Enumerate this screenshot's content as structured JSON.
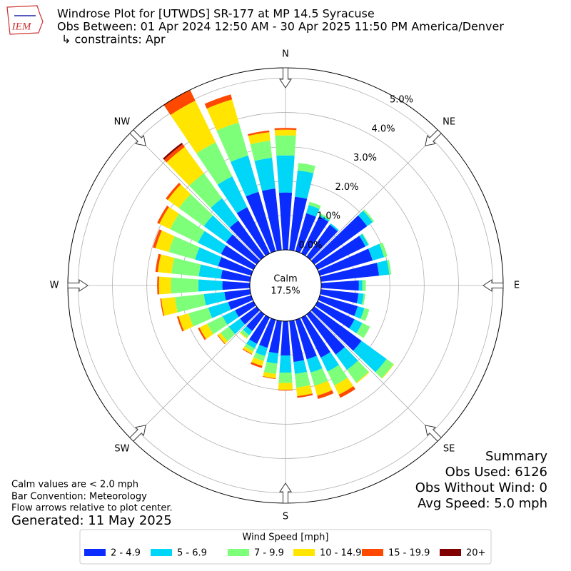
{
  "chart_data": {
    "type": "windrose",
    "title": "Windrose Plot for [UTWDS] SR-177 at MP 14.5 Syracuse",
    "subtitle": "Obs Between: 01 Apr 2024 12:50 AM - 30 Apr 2025 11:50 PM America/Denver",
    "constraints": "↳ constraints: Apr",
    "logo_text": "IEM",
    "directions": [
      "N",
      "NE",
      "E",
      "SE",
      "S",
      "SW",
      "W",
      "NW"
    ],
    "calm": {
      "name": "Calm",
      "values": [
        17.5
      ],
      "value_labels": [
        "17.5%"
      ]
    },
    "ylim": [
      0,
      5.3
    ],
    "yticks": [
      {
        "value": 0,
        "label": "0.0%"
      },
      {
        "value": 1,
        "label": "1.0%"
      },
      {
        "value": 2,
        "label": "2.0%"
      },
      {
        "value": 3,
        "label": "3.0%"
      },
      {
        "value": 4,
        "label": "4.0%"
      },
      {
        "value": 5,
        "label": "5.0%"
      }
    ],
    "x": [
      0,
      10,
      20,
      30,
      40,
      50,
      60,
      70,
      80,
      90,
      100,
      110,
      120,
      130,
      140,
      150,
      160,
      170,
      180,
      190,
      200,
      210,
      220,
      230,
      240,
      250,
      260,
      270,
      280,
      290,
      300,
      310,
      320,
      330,
      340,
      350
    ],
    "legend_title": "Wind Speed [mph]",
    "series": [
      {
        "name": "2 - 4.9",
        "color": "#0a2cff",
        "values": [
          1.67,
          1.56,
          1.15,
          1.2,
          1.15,
          1.9,
          1.55,
          1.6,
          1.7,
          1.1,
          1.1,
          1.15,
          1.2,
          1.7,
          1.45,
          1.3,
          1.2,
          1.2,
          1.0,
          0.95,
          0.85,
          0.85,
          0.6,
          0.6,
          0.6,
          0.7,
          0.75,
          0.8,
          0.85,
          1.0,
          1.05,
          1.1,
          1.3,
          1.5,
          1.8,
          1.8
        ]
      },
      {
        "name": "5 - 6.9",
        "color": "#00d6f7",
        "values": [
          1.08,
          0.77,
          0.25,
          0.05,
          0.05,
          0.2,
          0.1,
          0.35,
          0.3,
          0.1,
          0.15,
          0.2,
          0.25,
          0.9,
          0.55,
          0.45,
          0.4,
          0.35,
          0.5,
          0.3,
          0.25,
          0.15,
          0.15,
          0.4,
          0.4,
          0.6,
          0.6,
          0.7,
          0.65,
          0.7,
          0.75,
          0.8,
          0.8,
          1.0,
          1.1,
          0.9
        ]
      },
      {
        "name": "7 - 9.9",
        "color": "#7dff7a",
        "values": [
          0.58,
          0.22,
          0.1,
          0.05,
          0,
          0.05,
          0.02,
          0.1,
          0.06,
          0.1,
          0.05,
          0.15,
          0.25,
          0.25,
          0.45,
          0.45,
          0.4,
          0.4,
          0.3,
          0.3,
          0.15,
          0.1,
          0.1,
          0.3,
          0.5,
          0.6,
          0.85,
          0.8,
          0.8,
          0.8,
          0.9,
          0.9,
          0.9,
          1.1,
          1.0,
          0.5
        ]
      },
      {
        "name": "10 - 14.9",
        "color": "#ffe500",
        "values": [
          0.17,
          0,
          0,
          0,
          0,
          0,
          0,
          0,
          0,
          0,
          0,
          0,
          0,
          0.02,
          0.03,
          0.3,
          0.3,
          0.25,
          0.2,
          0.13,
          0.15,
          0.08,
          0.03,
          0.1,
          0.25,
          0.3,
          0.4,
          0.35,
          0.4,
          0.4,
          0.35,
          0.4,
          0.95,
          1.35,
          0.7,
          0.25
        ]
      },
      {
        "name": "15 - 19.9",
        "color": "#ff4800",
        "values": [
          0.05,
          0,
          0,
          0,
          0,
          0,
          0,
          0,
          0,
          0,
          0,
          0,
          0,
          0,
          0,
          0.1,
          0.1,
          0.05,
          0.02,
          0.02,
          0.06,
          0.02,
          0,
          0.02,
          0.05,
          0.05,
          0.03,
          0.05,
          0.07,
          0.08,
          0.07,
          0.07,
          0.1,
          0.35,
          0.15,
          0.05
        ]
      },
      {
        "name": "20+",
        "color": "#800000",
        "values": [
          0,
          0,
          0,
          0,
          0,
          0,
          0,
          0,
          0,
          0,
          0,
          0,
          0,
          0,
          0,
          0,
          0,
          0,
          0,
          0,
          0,
          0,
          0,
          0,
          0,
          0,
          0,
          0,
          0,
          0,
          0,
          0,
          0.05,
          0,
          0,
          0
        ]
      }
    ],
    "notes": [
      "Calm values are < 2.0 mph",
      "Bar Convention: Meteorology",
      "Flow arrows relative to plot center."
    ],
    "generated": "Generated: 11 May 2025",
    "summary": [
      "Summary",
      "Obs Used: 6126",
      "Obs Without Wind: 0",
      "Avg Speed: 5.0 mph"
    ]
  }
}
